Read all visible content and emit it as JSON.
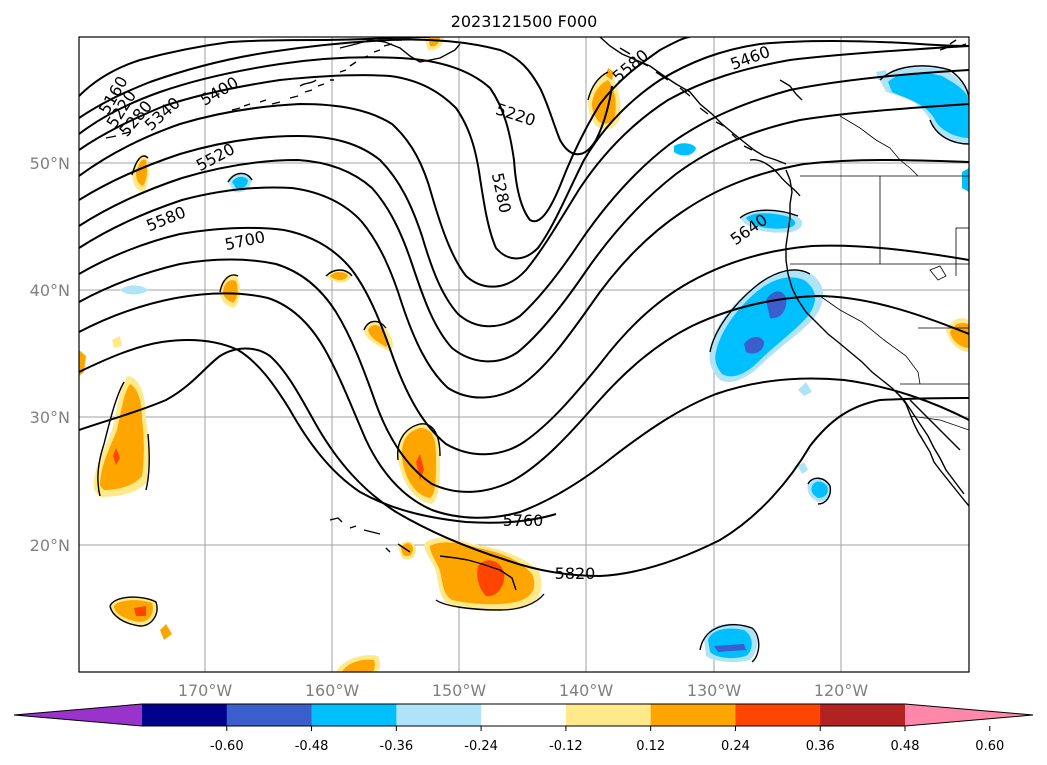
{
  "title": "2023121500 F000",
  "lat_labels": [
    "50°N",
    "40°N",
    "30°N",
    "20°N"
  ],
  "lon_labels": [
    "170°W",
    "160°W",
    "150°W",
    "140°W",
    "130°W",
    "120°W"
  ],
  "contour_labels": [
    "5160",
    "5220",
    "5280",
    "5340",
    "5400",
    "5520",
    "5580",
    "5700",
    "5220",
    "5280",
    "5460",
    "5640",
    "5760",
    "5820",
    "5580"
  ],
  "colorbar": {
    "ticks": [
      "-0.60",
      "-0.48",
      "-0.36",
      "-0.24",
      "-0.12",
      "0.12",
      "0.24",
      "0.36",
      "0.48",
      "0.60"
    ],
    "colors": [
      "#9933cc",
      "#00008b",
      "#3a5fcd",
      "#00bfff",
      "#aee3f8",
      "#ffffff",
      "#ffe98a",
      "#ffa500",
      "#ff4500",
      "#b22222",
      "#ff88aa"
    ]
  },
  "fill_colors": {
    "light_blue": "#aee3f8",
    "blue": "#00bfff",
    "royal_blue": "#3a5fcd",
    "light_yellow": "#ffe98a",
    "orange": "#ffa500",
    "red_orange": "#ff4500"
  }
}
